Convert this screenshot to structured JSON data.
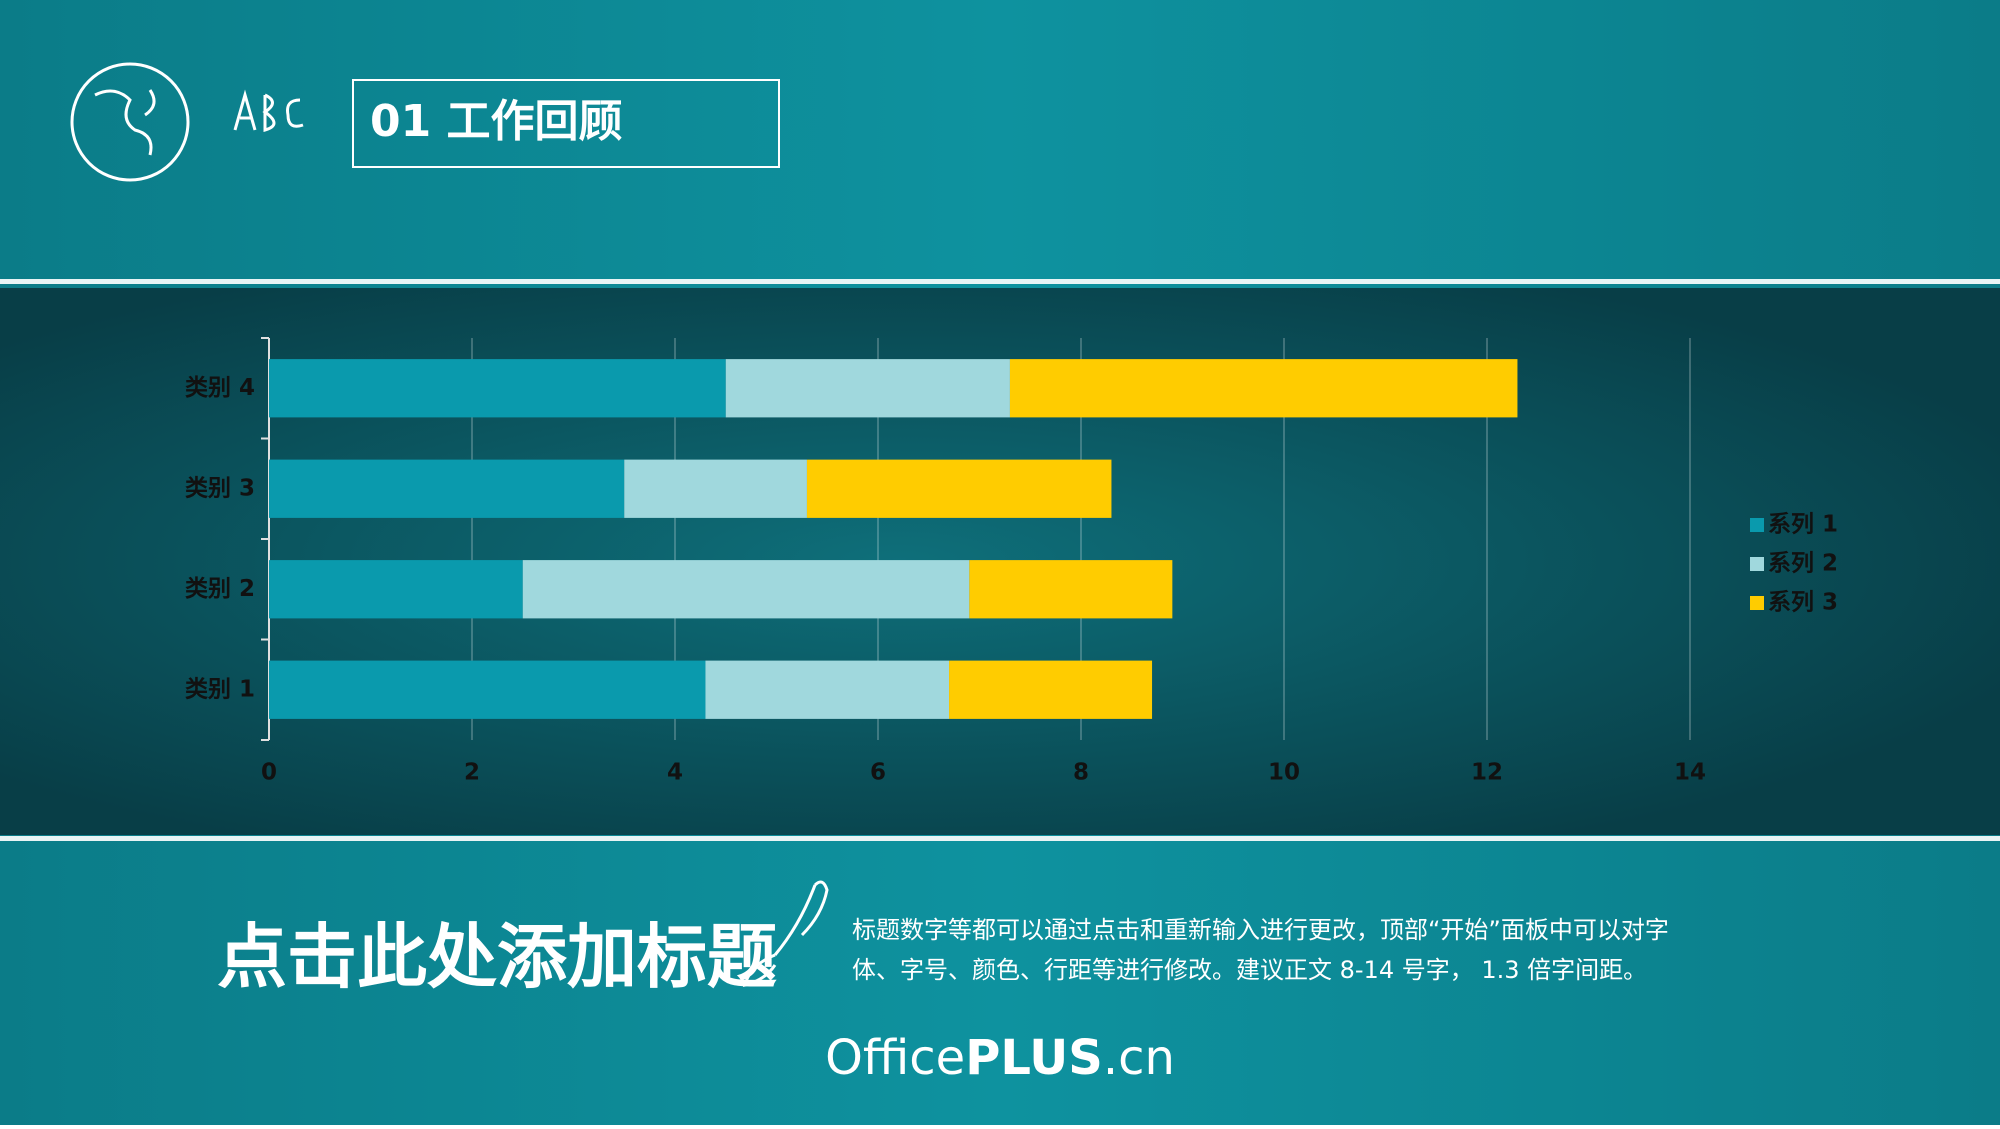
{
  "header": {
    "title": "01  工作回顾"
  },
  "chart_data": {
    "type": "stacked-bar-horizontal",
    "categories": [
      "类别 1",
      "类别 2",
      "类别 3",
      "类别 4"
    ],
    "series": [
      {
        "name": "系列 1",
        "color": "#0a9aad",
        "values": [
          4.3,
          2.5,
          3.5,
          4.5
        ]
      },
      {
        "name": "系列 2",
        "color": "#a0d8dd",
        "values": [
          2.4,
          4.4,
          1.8,
          2.8
        ]
      },
      {
        "name": "系列 3",
        "color": "#ffcc00",
        "values": [
          2.0,
          2.0,
          3.0,
          5.0
        ]
      }
    ],
    "xlim": [
      0,
      14
    ],
    "xticks": [
      0,
      2,
      4,
      6,
      8,
      10,
      12,
      14
    ],
    "grid": true,
    "legend": "right"
  },
  "footer": {
    "title": "点击此处添加标题",
    "body": [
      "标题数字等都可以通过点击和重新输入进行更改，顶部“开始”面板中可以对字",
      "体、字号、颜色、行距等进行修改。建议正文 8-14 号字， 1.3 倍字间距。"
    ],
    "brand": [
      "Office",
      "PLUS",
      ".cn"
    ]
  }
}
